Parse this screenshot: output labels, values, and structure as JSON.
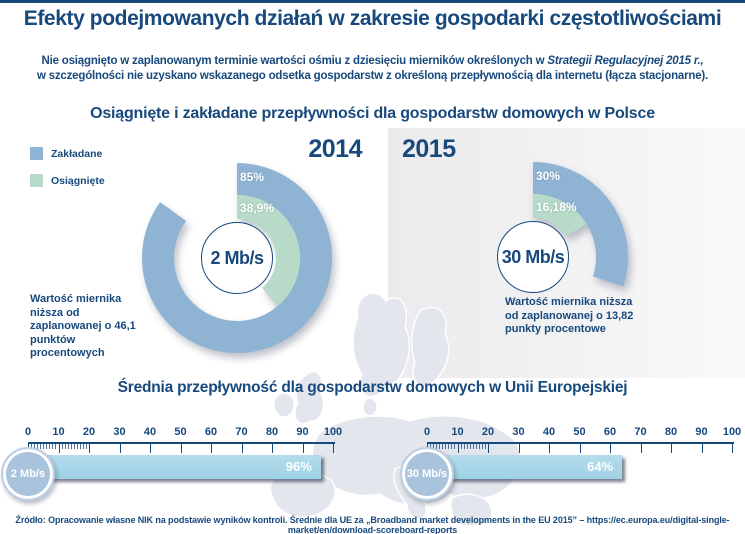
{
  "colors": {
    "navy": "#17497d",
    "planned_blue": "#8fb4d3",
    "achieved_green": "#b7dbc8",
    "bar_blue": "#a6d6e8",
    "badge_blue": "#a9c3dc",
    "panel_gray": "#ebebed",
    "map_gray": "#e3e6ec"
  },
  "header": {
    "title": "Efekty podejmowanych działań w zakresie gospodarki częstotliwościami",
    "subtitle_line1_pre": "Nie osiągnięto w zaplanowanym terminie wartości ośmiu z dziesięciu mierników określonych w ",
    "subtitle_line1_italic": "Strategii Regulacyjnej 2015 r.,",
    "subtitle_line2": "w szczególności nie uzyskano wskazanego odsetka gospodarstw z określoną przepływnością dla internetu (łącza stacjonarne)."
  },
  "section_poland": {
    "title": "Osiągnięte i zakładane przepływności dla gospodarstw domowych w Polsce",
    "legend": [
      {
        "label": "Zakładane",
        "color": "#8fb4d3"
      },
      {
        "label": "Osiągnięte",
        "color": "#b7dbc8"
      }
    ],
    "charts": [
      {
        "year": "2014",
        "center_label": "2 Mb/s",
        "planned_pct": 85,
        "planned_label": "85%",
        "achieved_pct": 38.9,
        "achieved_label": "38,9%",
        "note": "Wartość miernika niższa od zaplanowanej o 46,1 punktów procentowych"
      },
      {
        "year": "2015",
        "center_label": "30 Mb/s",
        "planned_pct": 30,
        "planned_label": "30%",
        "achieved_pct": 16.18,
        "achieved_label": "16,18%",
        "note": "Wartość miernika niższa od zaplanowanej o 13,82 punkty procentowe"
      }
    ]
  },
  "section_eu": {
    "title": "Średnia przepływność dla gospodarstw domowych w Unii Europejskiej",
    "axis_ticks": [
      0,
      10,
      20,
      30,
      40,
      50,
      60,
      70,
      80,
      90,
      100
    ],
    "rulers": [
      {
        "badge": "2 Mb/s",
        "value": 96,
        "value_label": "96%"
      },
      {
        "badge": "30 Mb/s",
        "value": 64,
        "value_label": "64%"
      }
    ]
  },
  "footer": {
    "source": "Źródło: Opracowanie własne NIK na podstawie wyników kontroli. Średnie dla UE za „Broadband market developments in the EU 2015” – https://ec.europa.eu/digital-single-market/en/download-scoreboard-reports"
  },
  "chart_data": [
    {
      "type": "pie",
      "subtype": "donut-pair",
      "title": "Osiągnięte i zakładane przepływności dla gospodarstw domowych w Polsce",
      "legend": [
        "Zakładane",
        "Osiągnięte"
      ],
      "legend_position": "top-left",
      "charts": [
        {
          "year": "2014",
          "threshold": "2 Mb/s",
          "series": [
            {
              "name": "Zakładane",
              "value": 85
            },
            {
              "name": "Osiągnięte",
              "value": 38.9
            }
          ],
          "shortfall_points": 46.1,
          "annotation": "Wartość miernika niższa od zaplanowanej o 46,1 punktów procentowych"
        },
        {
          "year": "2015",
          "threshold": "30 Mb/s",
          "series": [
            {
              "name": "Zakładane",
              "value": 30
            },
            {
              "name": "Osiągnięte",
              "value": 16.18
            }
          ],
          "shortfall_points": 13.82,
          "annotation": "Wartość miernika niższa od zaplanowanej o 13,82 punkty procentowe"
        }
      ]
    },
    {
      "type": "bar",
      "subtype": "horizontal-ruler",
      "title": "Średnia przepływność dla gospodarstw domowych w Unii Europejskiej",
      "categories": [
        "2 Mb/s",
        "30 Mb/s"
      ],
      "values": [
        96,
        64
      ],
      "value_labels": [
        "96%",
        "64%"
      ],
      "xlabel": "",
      "ylabel": "",
      "xlim": [
        0,
        100
      ],
      "axis_ticks": [
        0,
        10,
        20,
        30,
        40,
        50,
        60,
        70,
        80,
        90,
        100
      ],
      "grid": false
    }
  ]
}
